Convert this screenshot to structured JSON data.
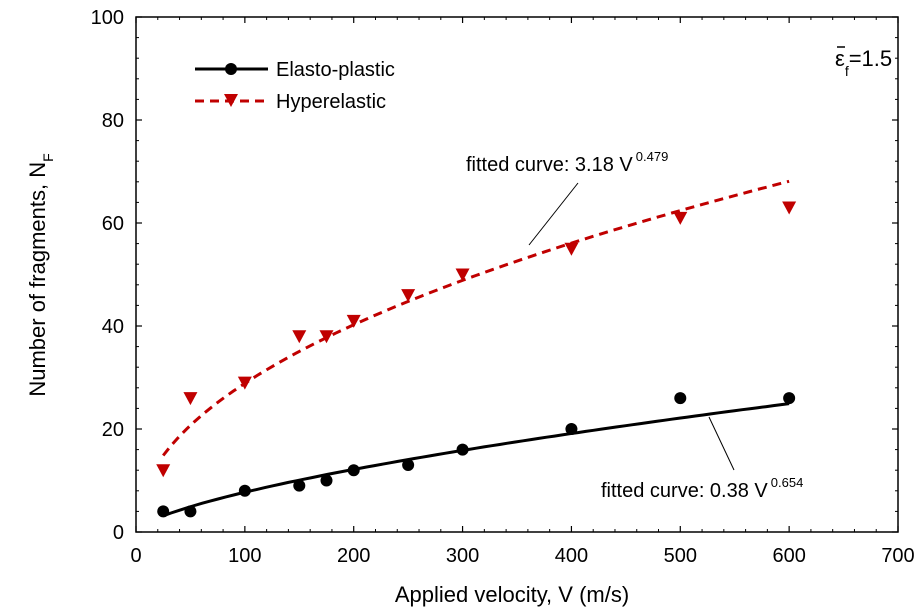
{
  "chart_data": {
    "type": "scatter",
    "xlabel": "Applied velocity, V (m/s)",
    "ylabel_main": "Number of fragments, N",
    "ylabel_sub": "F",
    "xlim": [
      0,
      700
    ],
    "ylim": [
      0,
      100
    ],
    "xticks": [
      0,
      100,
      200,
      300,
      400,
      500,
      600,
      700
    ],
    "yticks": [
      0,
      20,
      40,
      60,
      80,
      100
    ],
    "grid": false,
    "legend_position": "top-left",
    "strain_label": {
      "symbol": "ε",
      "subscript": "f",
      "value": "=1.5"
    },
    "series": [
      {
        "name": "Elasto-plastic",
        "color": "#000000",
        "marker": "circle",
        "line_style": "solid",
        "x": [
          25,
          50,
          100,
          150,
          175,
          200,
          250,
          300,
          400,
          500,
          600
        ],
        "y": [
          4,
          4,
          8,
          9,
          10,
          12,
          13,
          16,
          20,
          26,
          26
        ],
        "fit": {
          "coef": 0.38,
          "exp": 0.654,
          "x_start": 25,
          "x_end": 600
        },
        "fit_annotation": {
          "text": "fitted curve: 0.38 V",
          "exponent": "0.654"
        }
      },
      {
        "name": "Hyperelastic",
        "color": "#c00000",
        "marker": "triangle-down",
        "line_style": "dashed",
        "x": [
          25,
          50,
          100,
          150,
          175,
          200,
          250,
          300,
          400,
          500,
          600
        ],
        "y": [
          12,
          26,
          29,
          38,
          38,
          41,
          46,
          50,
          55,
          61,
          63
        ],
        "fit": {
          "coef": 3.18,
          "exp": 0.479,
          "x_start": 25,
          "x_end": 600
        },
        "fit_annotation": {
          "text": "fitted curve: 3.18 V",
          "exponent": "0.479"
        }
      }
    ]
  }
}
